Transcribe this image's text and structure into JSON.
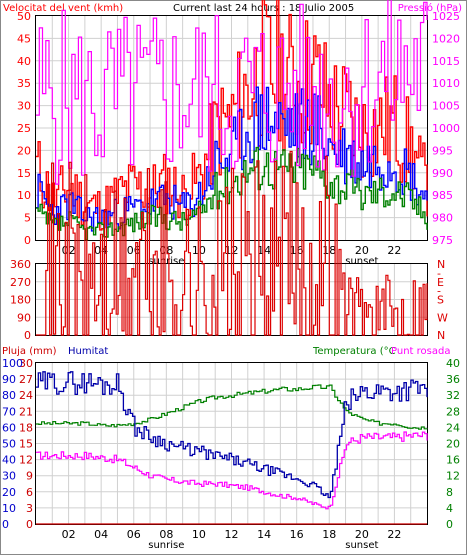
{
  "colors": {
    "wind_speed": "#ff0000",
    "wind_avg": "#0000ff",
    "wind_min": "#008000",
    "pressure": "#ff00ff",
    "direction": "#dd0000",
    "humidity": "#0000aa",
    "temperature": "#008000",
    "dewpoint": "#ff00ff",
    "rain": "#cc0000",
    "grid": "#d0d0d0",
    "frame": "#000000"
  },
  "chart_data": [
    {
      "type": "line",
      "title": "Current last 24 hours : 18 Julio 2005",
      "ylabel": "Velocitat del vent (kmh)",
      "y2label": "Pressió (hPa)",
      "x_ticks": [
        "02",
        "04",
        "06",
        "08",
        "10",
        "12",
        "14",
        "16",
        "18",
        "20",
        "22"
      ],
      "x_annotations": [
        "sunrise",
        "sunset"
      ],
      "ylim": [
        0,
        50
      ],
      "y_ticks": [
        "0",
        "5",
        "10",
        "15",
        "20",
        "25",
        "30",
        "35",
        "40",
        "45",
        "50"
      ],
      "y2lim": [
        975,
        1025
      ],
      "y2_ticks": [
        "975",
        "980",
        "985",
        "990",
        "995",
        "1000",
        "1005",
        "1010",
        "1015",
        "1020",
        "1025"
      ],
      "x": [
        0,
        1,
        2,
        3,
        4,
        5,
        6,
        7,
        8,
        9,
        10,
        11,
        12,
        13,
        14,
        15,
        16,
        17,
        18,
        19,
        20,
        21,
        22,
        23,
        24
      ],
      "series": [
        {
          "key": "gust",
          "values": [
            16,
            9,
            12,
            8,
            7,
            10,
            12,
            11,
            13,
            10,
            14,
            24,
            27,
            34,
            38,
            37,
            35,
            36,
            30,
            28,
            24,
            25,
            26,
            20,
            12
          ]
        },
        {
          "key": "avg",
          "values": [
            11,
            6,
            8,
            5,
            5,
            6,
            7,
            8,
            9,
            7,
            10,
            17,
            19,
            25,
            27,
            26,
            25,
            26,
            21,
            19,
            17,
            18,
            18,
            14,
            9
          ]
        },
        {
          "key": "min",
          "values": [
            6,
            3,
            4,
            2,
            2,
            3,
            4,
            5,
            5,
            4,
            6,
            11,
            13,
            16,
            17,
            16,
            16,
            16,
            13,
            12,
            10,
            11,
            11,
            9,
            5
          ]
        },
        {
          "key": "pressure",
          "values": [
            1006.5,
            1007,
            1006.5,
            1005.5,
            1005.5,
            1006,
            1006.5,
            1007,
            1007.5,
            1007.5,
            1007.5,
            1007,
            1007.5,
            1008,
            1008,
            1008,
            1008,
            1007.5,
            1007.5,
            1008,
            1009,
            1011,
            1012,
            1013.5,
            1014.5
          ]
        }
      ]
    },
    {
      "type": "line",
      "ylim": [
        0,
        360
      ],
      "y_ticks": [
        "0",
        "90",
        "180",
        "270",
        "360"
      ],
      "y2_ticks": [
        "N",
        "W",
        "S",
        "E",
        "N"
      ],
      "y2_separators": [
        "-",
        "-"
      ],
      "x": [
        0,
        1,
        2,
        3,
        4,
        5,
        6,
        7,
        8,
        9,
        10,
        11,
        12,
        13,
        14,
        15,
        16,
        17,
        18,
        19,
        20,
        21,
        22,
        23,
        24
      ],
      "series": [
        {
          "key": "direction",
          "values": [
            230,
            290,
            300,
            270,
            260,
            240,
            280,
            300,
            270,
            280,
            230,
            290,
            280,
            300,
            300,
            310,
            315,
            320,
            330,
            120,
            100,
            100,
            100,
            115,
            130
          ]
        }
      ]
    },
    {
      "type": "line",
      "ylabel": "Pluja (mm)",
      "ylabel2": "Humitat",
      "y2label": "Temperatura (°C",
      "y2label2": "Punt rosada",
      "x_ticks": [
        "02",
        "04",
        "06",
        "08",
        "10",
        "12",
        "14",
        "16",
        "18",
        "20",
        "22"
      ],
      "x_annotations": [
        "sunrise",
        "sunset"
      ],
      "ylim_rain": [
        0,
        30
      ],
      "y_ticks_rain": [
        "0",
        "3",
        "6",
        "9",
        "12",
        "15",
        "18",
        "21",
        "24",
        "27",
        "30"
      ],
      "ylim_hum": [
        0,
        100
      ],
      "y_ticks_hum": [
        "0",
        "10",
        "20",
        "30",
        "40",
        "50",
        "60",
        "70",
        "80",
        "90",
        "100"
      ],
      "y2lim": [
        0,
        40
      ],
      "y2_ticks": [
        "0",
        "4",
        "8",
        "12",
        "16",
        "20",
        "24",
        "28",
        "32",
        "36",
        "40"
      ],
      "x": [
        0,
        1,
        2,
        3,
        4,
        5,
        6,
        7,
        8,
        9,
        10,
        11,
        12,
        13,
        14,
        15,
        16,
        17,
        18,
        19,
        20,
        21,
        22,
        23,
        24
      ],
      "series": [
        {
          "key": "humidity",
          "values": [
            87,
            88,
            88,
            88,
            87,
            87,
            60,
            54,
            50,
            47,
            45,
            42,
            40,
            37,
            34,
            31,
            28,
            24,
            16,
            75,
            82,
            83,
            83,
            84,
            84
          ]
        },
        {
          "key": "temperature",
          "values": [
            25,
            25,
            25,
            25,
            24.5,
            24.5,
            25,
            26,
            27.5,
            29,
            30.5,
            31.5,
            32,
            32.5,
            33,
            33.5,
            33.5,
            34,
            34,
            28,
            26,
            25,
            25,
            24,
            24
          ]
        },
        {
          "key": "dewpoint",
          "values": [
            17,
            17,
            17,
            17,
            16.5,
            16,
            14,
            12,
            11,
            10.5,
            10,
            10,
            9.5,
            9,
            8,
            7,
            6.5,
            5,
            4,
            20,
            21.5,
            21.5,
            21.5,
            22,
            22
          ]
        },
        {
          "key": "rain",
          "values": [
            0,
            0,
            0,
            0,
            0,
            0,
            0,
            0,
            0,
            0,
            0,
            0,
            0,
            0,
            0,
            0,
            0,
            0,
            0,
            0,
            0,
            0,
            0,
            0,
            0
          ]
        }
      ]
    }
  ]
}
